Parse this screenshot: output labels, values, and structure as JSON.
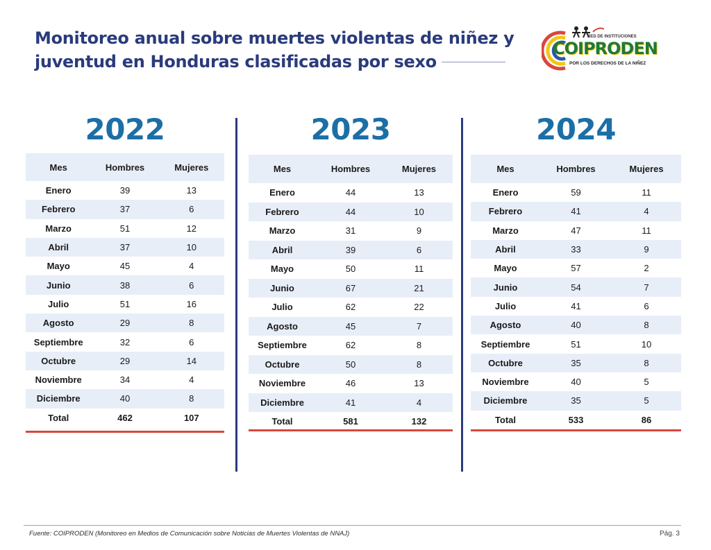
{
  "title": "Monitoreo anual sobre muertes violentas de niñez y juventud en Honduras clasificadas por sexo",
  "logo": {
    "top": "RED DE INSTITUCIONES",
    "name": "COIPRODEN",
    "bottom": "POR LOS DERECHOS DE LA NIÑEZ"
  },
  "headers": {
    "mes": "Mes",
    "hombres": "Hombres",
    "mujeres": "Mujeres"
  },
  "total_label": "Total",
  "months": [
    "Enero",
    "Febrero",
    "Marzo",
    "Abril",
    "Mayo",
    "Junio",
    "Julio",
    "Agosto",
    "Septiembre",
    "Octubre",
    "Noviembre",
    "Diciembre"
  ],
  "years": [
    {
      "year": "2022",
      "hombres": [
        "39",
        "37",
        "51",
        "37",
        "45",
        "38",
        "51",
        "29",
        "32",
        "29",
        "34",
        "40"
      ],
      "mujeres": [
        "13",
        "6",
        "12",
        "10",
        "4",
        "6",
        "16",
        "8",
        "6",
        "14",
        "4",
        "8"
      ],
      "total_hombres": "462",
      "total_mujeres": "107"
    },
    {
      "year": "2023",
      "hombres": [
        "44",
        "44",
        "31",
        "39",
        "50",
        "67",
        "62",
        "45",
        "62",
        "50",
        "46",
        "41"
      ],
      "mujeres": [
        "13",
        "10",
        "9",
        "6",
        "11",
        "21",
        "22",
        "7",
        "8",
        "8",
        "13",
        "4"
      ],
      "total_hombres": "581",
      "total_mujeres": "132"
    },
    {
      "year": "2024",
      "hombres": [
        "59",
        "41",
        "47",
        "33",
        "57",
        "54",
        "41",
        "40",
        "51",
        "35",
        "40",
        "35"
      ],
      "mujeres": [
        "11",
        "4",
        "11",
        "9",
        "2",
        "7",
        "6",
        "8",
        "10",
        "8",
        "5",
        "5"
      ],
      "total_hombres": "533",
      "total_mujeres": "86"
    }
  ],
  "footer": {
    "source": "Fuente: COIPRODEN (Monitoreo en Medios de Comunicación sobre Noticias de Muertes Violentas de NNAJ)",
    "page": "Pág. 3"
  },
  "colors": {
    "title": "#2a3b7c",
    "year": "#1c6fa6",
    "band": "#e8eef8",
    "total_line": "#d9463e"
  }
}
